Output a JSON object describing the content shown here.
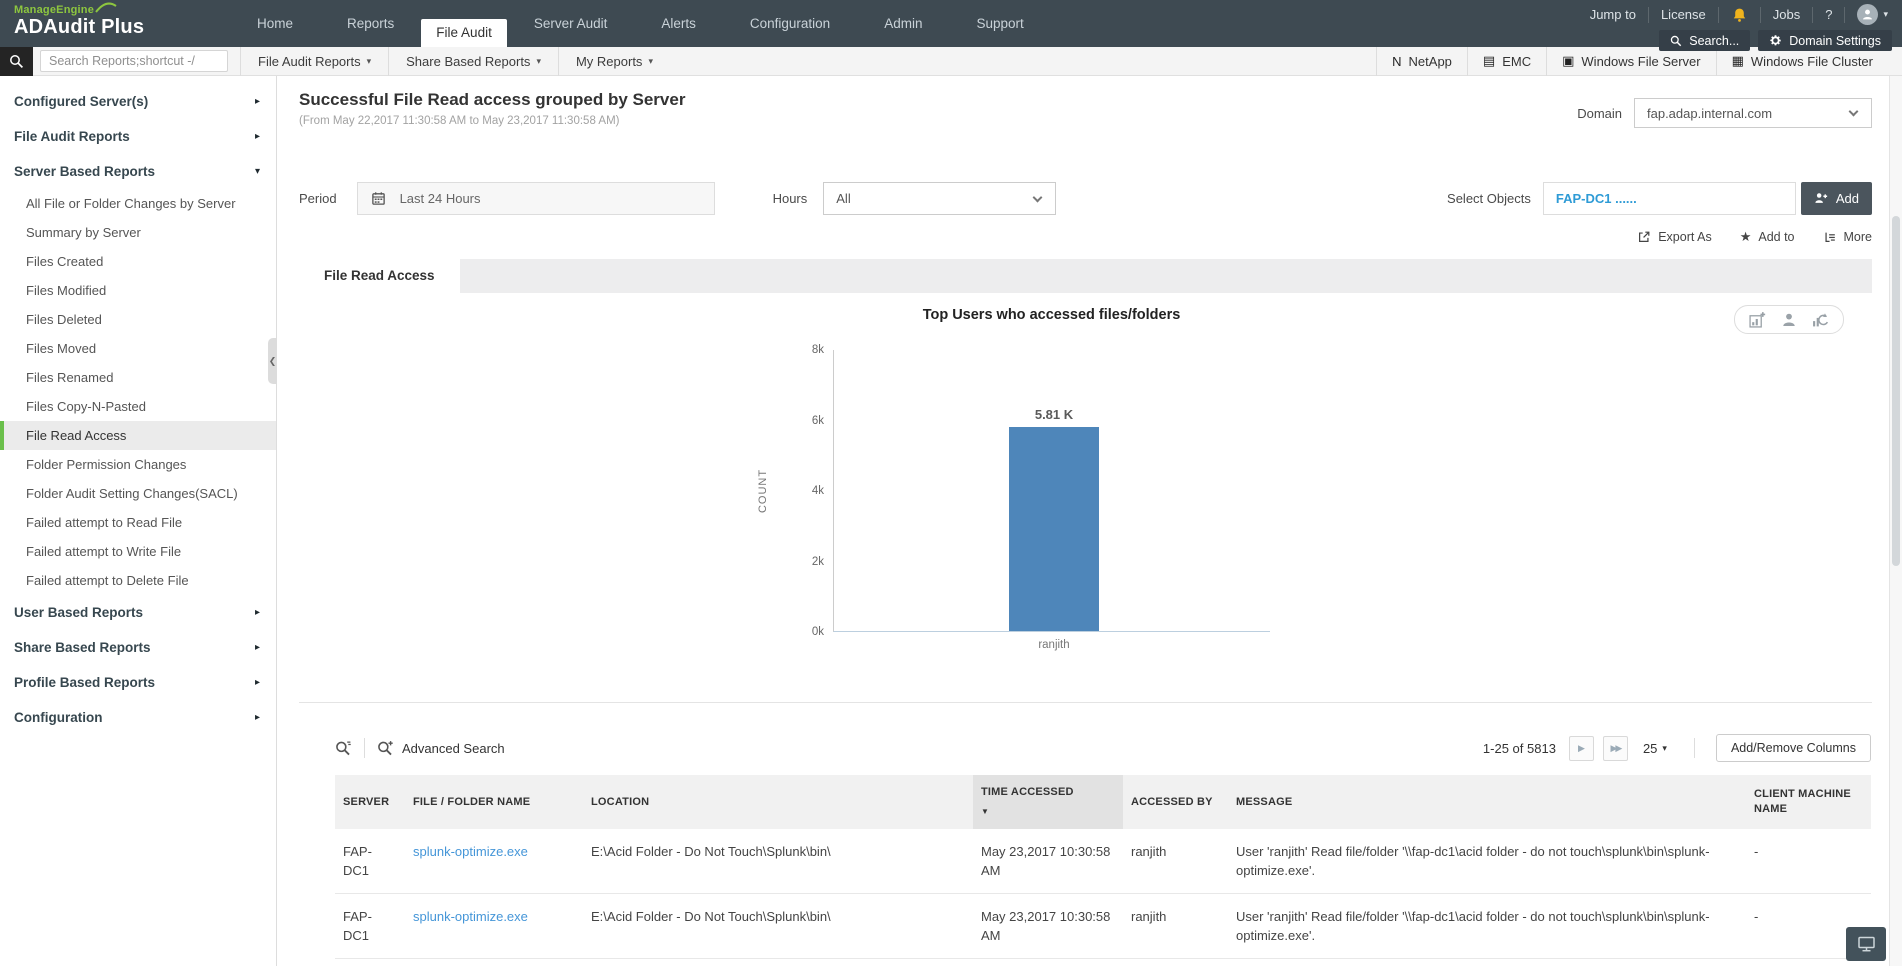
{
  "header": {
    "company": "ManageEngine",
    "product": "ADAudit Plus",
    "nav": [
      {
        "label": "Home"
      },
      {
        "label": "Reports"
      },
      {
        "label": "File Audit",
        "active": true
      },
      {
        "label": "Server Audit"
      },
      {
        "label": "Alerts"
      },
      {
        "label": "Configuration"
      },
      {
        "label": "Admin"
      },
      {
        "label": "Support"
      }
    ],
    "utility": {
      "jump_to": "Jump to",
      "license": "License",
      "jobs": "Jobs",
      "help": "?"
    },
    "search_label": "Search...",
    "domain_settings_label": "Domain Settings"
  },
  "toolbar": {
    "search_placeholder": "Search Reports;shortcut -/",
    "menus": [
      {
        "label": "File Audit Reports"
      },
      {
        "label": "Share Based Reports"
      },
      {
        "label": "My Reports"
      }
    ],
    "server_types": [
      {
        "label": "NetApp",
        "icon": "netapp-icon",
        "glyph": "N"
      },
      {
        "label": "EMC",
        "icon": "emc-icon",
        "glyph": "▤"
      },
      {
        "label": "Windows File Server",
        "icon": "windows-file-server-icon",
        "glyph": "▣"
      },
      {
        "label": "Windows File Cluster",
        "icon": "windows-file-cluster-icon",
        "glyph": "▦"
      }
    ]
  },
  "sidebar": {
    "items": [
      {
        "label": "Configured Server(s)",
        "type": "section",
        "caret": "▸"
      },
      {
        "label": "File Audit Reports",
        "type": "section",
        "caret": "▸"
      },
      {
        "label": "Server Based Reports",
        "type": "section",
        "caret": "▾",
        "expanded": true
      },
      {
        "label": "All File or Folder Changes by Server",
        "type": "item"
      },
      {
        "label": "Summary by Server",
        "type": "item"
      },
      {
        "label": "Files Created",
        "type": "item"
      },
      {
        "label": "Files Modified",
        "type": "item"
      },
      {
        "label": "Files Deleted",
        "type": "item"
      },
      {
        "label": "Files Moved",
        "type": "item"
      },
      {
        "label": "Files Renamed",
        "type": "item"
      },
      {
        "label": "Files Copy-N-Pasted",
        "type": "item"
      },
      {
        "label": "File Read Access",
        "type": "item",
        "selected": true
      },
      {
        "label": "Folder Permission Changes",
        "type": "item"
      },
      {
        "label": "Folder Audit Setting Changes(SACL)",
        "type": "item"
      },
      {
        "label": "Failed attempt to Read File",
        "type": "item"
      },
      {
        "label": "Failed attempt to Write File",
        "type": "item"
      },
      {
        "label": "Failed attempt to Delete File",
        "type": "item"
      },
      {
        "label": "User Based Reports",
        "type": "section",
        "caret": "▸"
      },
      {
        "label": "Share Based Reports",
        "type": "section",
        "caret": "▸"
      },
      {
        "label": "Profile Based Reports",
        "type": "section",
        "caret": "▸"
      },
      {
        "label": "Configuration",
        "type": "section",
        "caret": "▸"
      }
    ]
  },
  "report": {
    "title": "Successful File Read access grouped by Server",
    "subtitle": "(From May 22,2017 11:30:58 AM to May 23,2017 11:30:58 AM)",
    "domain_label": "Domain",
    "domain_value": "fap.adap.internal.com",
    "period_label": "Period",
    "period_value": "Last 24 Hours",
    "hours_label": "Hours",
    "hours_value": "All",
    "select_objects_label": "Select Objects",
    "select_objects_value": "FAP-DC1 ......",
    "add_button_label": "Add",
    "actions": [
      {
        "label": "Export As",
        "icon": "export-icon"
      },
      {
        "label": "Add to",
        "icon": "star-icon"
      },
      {
        "label": "More",
        "icon": "more-icon"
      }
    ],
    "tab_label": "File Read Access"
  },
  "chart_data": {
    "type": "bar",
    "title": "Top Users who accessed files/folders",
    "ylabel": "COUNT",
    "categories": [
      "ranjith"
    ],
    "values": [
      5810
    ],
    "value_labels": [
      "5.81 K"
    ],
    "yticks": [
      "8k",
      "6k",
      "4k",
      "2k",
      "0k"
    ],
    "ylim": [
      0,
      8000
    ],
    "grid": false,
    "legend": "none",
    "bar_color": "#4e86ba"
  },
  "table": {
    "advanced_search_label": "Advanced Search",
    "pagination": {
      "range_text": "1-25 of 5813",
      "page_size": "25"
    },
    "add_remove_columns_label": "Add/Remove Columns",
    "columns": [
      {
        "label": "SERVER"
      },
      {
        "label": "FILE / FOLDER NAME"
      },
      {
        "label": "LOCATION"
      },
      {
        "label": "TIME ACCESSED",
        "sorted": true
      },
      {
        "label": "ACCESSED BY"
      },
      {
        "label": "MESSAGE"
      },
      {
        "label": "CLIENT MACHINE NAME"
      }
    ],
    "rows": [
      {
        "server": "FAP-DC1",
        "file_name": "splunk-optimize.exe",
        "location": "E:\\Acid Folder - Do Not Touch\\Splunk\\bin\\",
        "time_accessed": "May 23,2017 10:30:58 AM",
        "accessed_by": "ranjith",
        "message": "User 'ranjith' Read file/folder '\\\\fap-dc1\\acid folder - do not touch\\splunk\\bin\\splunk-optimize.exe'.",
        "client_machine": "-"
      },
      {
        "server": "FAP-DC1",
        "file_name": "splunk-optimize.exe",
        "location": "E:\\Acid Folder - Do Not Touch\\Splunk\\bin\\",
        "time_accessed": "May 23,2017 10:30:58 AM",
        "accessed_by": "ranjith",
        "message": "User 'ranjith' Read file/folder '\\\\fap-dc1\\acid folder - do not touch\\splunk\\bin\\splunk-optimize.exe'.",
        "client_machine": "-"
      }
    ]
  }
}
